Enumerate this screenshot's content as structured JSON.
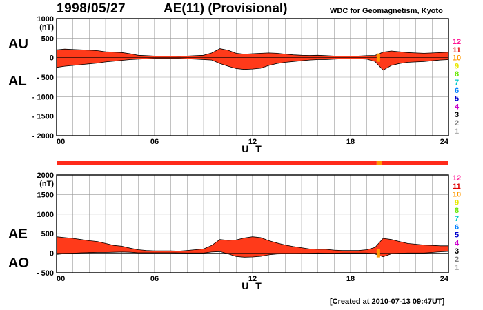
{
  "header": {
    "date": "1998/05/27",
    "title": "AE(11) (Provisional)",
    "organization": "WDC for Geomagnetism, Kyoto"
  },
  "footer": {
    "created": "[Created at 2010-07-13 09:47UT]"
  },
  "colors": {
    "fill": "#ff3a1a",
    "grid": "#999999",
    "legend": [
      "#ff1493",
      "#e00000",
      "#ff9900",
      "#e8e800",
      "#66e800",
      "#00c8c8",
      "#0080ff",
      "#0000cc",
      "#cc00cc",
      "#000000",
      "#808080",
      "#b0b0b0"
    ]
  },
  "legend": {
    "labels": [
      "12",
      "11",
      "10",
      "9",
      "8",
      "7",
      "6",
      "5",
      "4",
      "3",
      "2",
      "1"
    ]
  },
  "chart_data": [
    {
      "type": "area",
      "id": "au-al",
      "upper_label": "AU",
      "lower_label": "AL",
      "unit": "(nT)",
      "xlabel": "U T",
      "xlim": [
        0,
        24
      ],
      "ylim": [
        -2000,
        1000
      ],
      "x_ticks": [
        "00",
        "06",
        "12",
        "18",
        "24"
      ],
      "y_ticks": [
        "1000",
        "500",
        "0",
        "- 500",
        "- 1000",
        "- 1500",
        "- 2000"
      ],
      "hours": [
        0,
        0.5,
        1,
        1.5,
        2,
        2.5,
        3,
        3.5,
        4,
        4.5,
        5,
        5.5,
        6,
        6.5,
        7,
        7.5,
        8,
        8.5,
        9,
        9.5,
        10,
        10.5,
        11,
        11.5,
        12,
        12.5,
        13,
        13.5,
        14,
        14.5,
        15,
        15.5,
        16,
        16.5,
        17,
        17.5,
        18,
        18.5,
        19,
        19.5,
        20,
        20.5,
        21,
        21.5,
        22,
        22.5,
        23,
        23.5,
        24
      ],
      "series": [
        {
          "name": "AU",
          "values": [
            200,
            220,
            210,
            200,
            190,
            180,
            150,
            140,
            130,
            100,
            60,
            50,
            40,
            40,
            40,
            35,
            40,
            50,
            60,
            120,
            230,
            190,
            110,
            90,
            100,
            110,
            120,
            110,
            90,
            70,
            60,
            55,
            60,
            50,
            40,
            40,
            40,
            40,
            50,
            55,
            140,
            170,
            150,
            130,
            120,
            110,
            120,
            130,
            140
          ]
        },
        {
          "name": "AL",
          "values": [
            -250,
            -220,
            -200,
            -180,
            -160,
            -140,
            -110,
            -90,
            -70,
            -50,
            -40,
            -30,
            -20,
            -20,
            -20,
            -20,
            -30,
            -40,
            -50,
            -60,
            -150,
            -220,
            -280,
            -300,
            -290,
            -270,
            -200,
            -150,
            -120,
            -100,
            -80,
            -60,
            -50,
            -50,
            -40,
            -30,
            -30,
            -30,
            -40,
            -100,
            -320,
            -200,
            -150,
            -120,
            -110,
            -100,
            -80,
            -60,
            -50
          ]
        }
      ]
    },
    {
      "type": "area",
      "id": "ae-ao",
      "upper_label": "AE",
      "lower_label": "AO",
      "unit": "(nT)",
      "xlabel": "U T",
      "xlim": [
        0,
        24
      ],
      "ylim": [
        -500,
        2000
      ],
      "x_ticks": [
        "00",
        "06",
        "12",
        "18",
        "24"
      ],
      "y_ticks": [
        "2000",
        "1500",
        "1000",
        "500",
        "0",
        "- 500"
      ],
      "hours": [
        0,
        0.5,
        1,
        1.5,
        2,
        2.5,
        3,
        3.5,
        4,
        4.5,
        5,
        5.5,
        6,
        6.5,
        7,
        7.5,
        8,
        8.5,
        9,
        9.5,
        10,
        10.5,
        11,
        11.5,
        12,
        12.5,
        13,
        13.5,
        14,
        14.5,
        15,
        15.5,
        16,
        16.5,
        17,
        17.5,
        18,
        18.5,
        19,
        19.5,
        20,
        20.5,
        21,
        21.5,
        22,
        22.5,
        23,
        23.5,
        24
      ],
      "series": [
        {
          "name": "AE",
          "values": [
            420,
            400,
            380,
            350,
            320,
            300,
            250,
            200,
            180,
            130,
            90,
            70,
            60,
            60,
            60,
            55,
            70,
            90,
            110,
            200,
            350,
            330,
            340,
            390,
            420,
            400,
            320,
            260,
            210,
            170,
            140,
            110,
            100,
            100,
            80,
            70,
            70,
            70,
            90,
            150,
            380,
            350,
            300,
            250,
            230,
            210,
            200,
            190,
            190
          ]
        },
        {
          "name": "AO",
          "values": [
            -30,
            -10,
            0,
            10,
            15,
            20,
            20,
            25,
            30,
            25,
            10,
            10,
            10,
            10,
            10,
            8,
            5,
            5,
            5,
            30,
            40,
            -15,
            -85,
            -100,
            -95,
            -80,
            -40,
            -20,
            -15,
            -15,
            -10,
            -3,
            5,
            0,
            0,
            5,
            5,
            5,
            5,
            -20,
            -90,
            -15,
            0,
            5,
            5,
            5,
            20,
            35,
            45
          ]
        }
      ]
    }
  ],
  "quality_bar": {
    "segments": [
      {
        "from": 0,
        "to": 19.6,
        "level": 11
      },
      {
        "from": 19.6,
        "to": 19.9,
        "level": 10
      },
      {
        "from": 19.9,
        "to": 24,
        "level": 11
      }
    ]
  }
}
